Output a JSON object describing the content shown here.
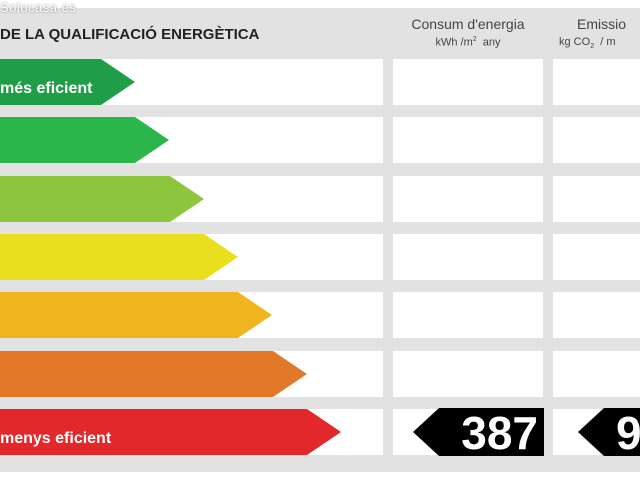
{
  "watermark": "Solocasa.es",
  "title": "DE LA QUALIFICACIÓ ENERGÈTICA",
  "columns": {
    "consum": {
      "title": "Consum d'energia",
      "unit_prefix": "kWh /m",
      "unit_sup": "2",
      "unit_suffix": "  any"
    },
    "emissions": {
      "title": "Emissio",
      "unit_prefix": "kg CO",
      "unit_sub": "2",
      "unit_suffix": "  / m"
    }
  },
  "rating_rows": [
    {
      "label": "més eficient",
      "color": "#1f9d48"
    },
    {
      "label": "",
      "color": "#2bb64b"
    },
    {
      "label": "",
      "color": "#8cc63f"
    },
    {
      "label": "",
      "color": "#eadf1f"
    },
    {
      "label": "",
      "color": "#f0b41f"
    },
    {
      "label": "",
      "color": "#e2782a"
    },
    {
      "label": "menys eficient",
      "color": "#e2282b"
    }
  ],
  "rating": {
    "consum_value": "387",
    "emissions_value": "9"
  }
}
